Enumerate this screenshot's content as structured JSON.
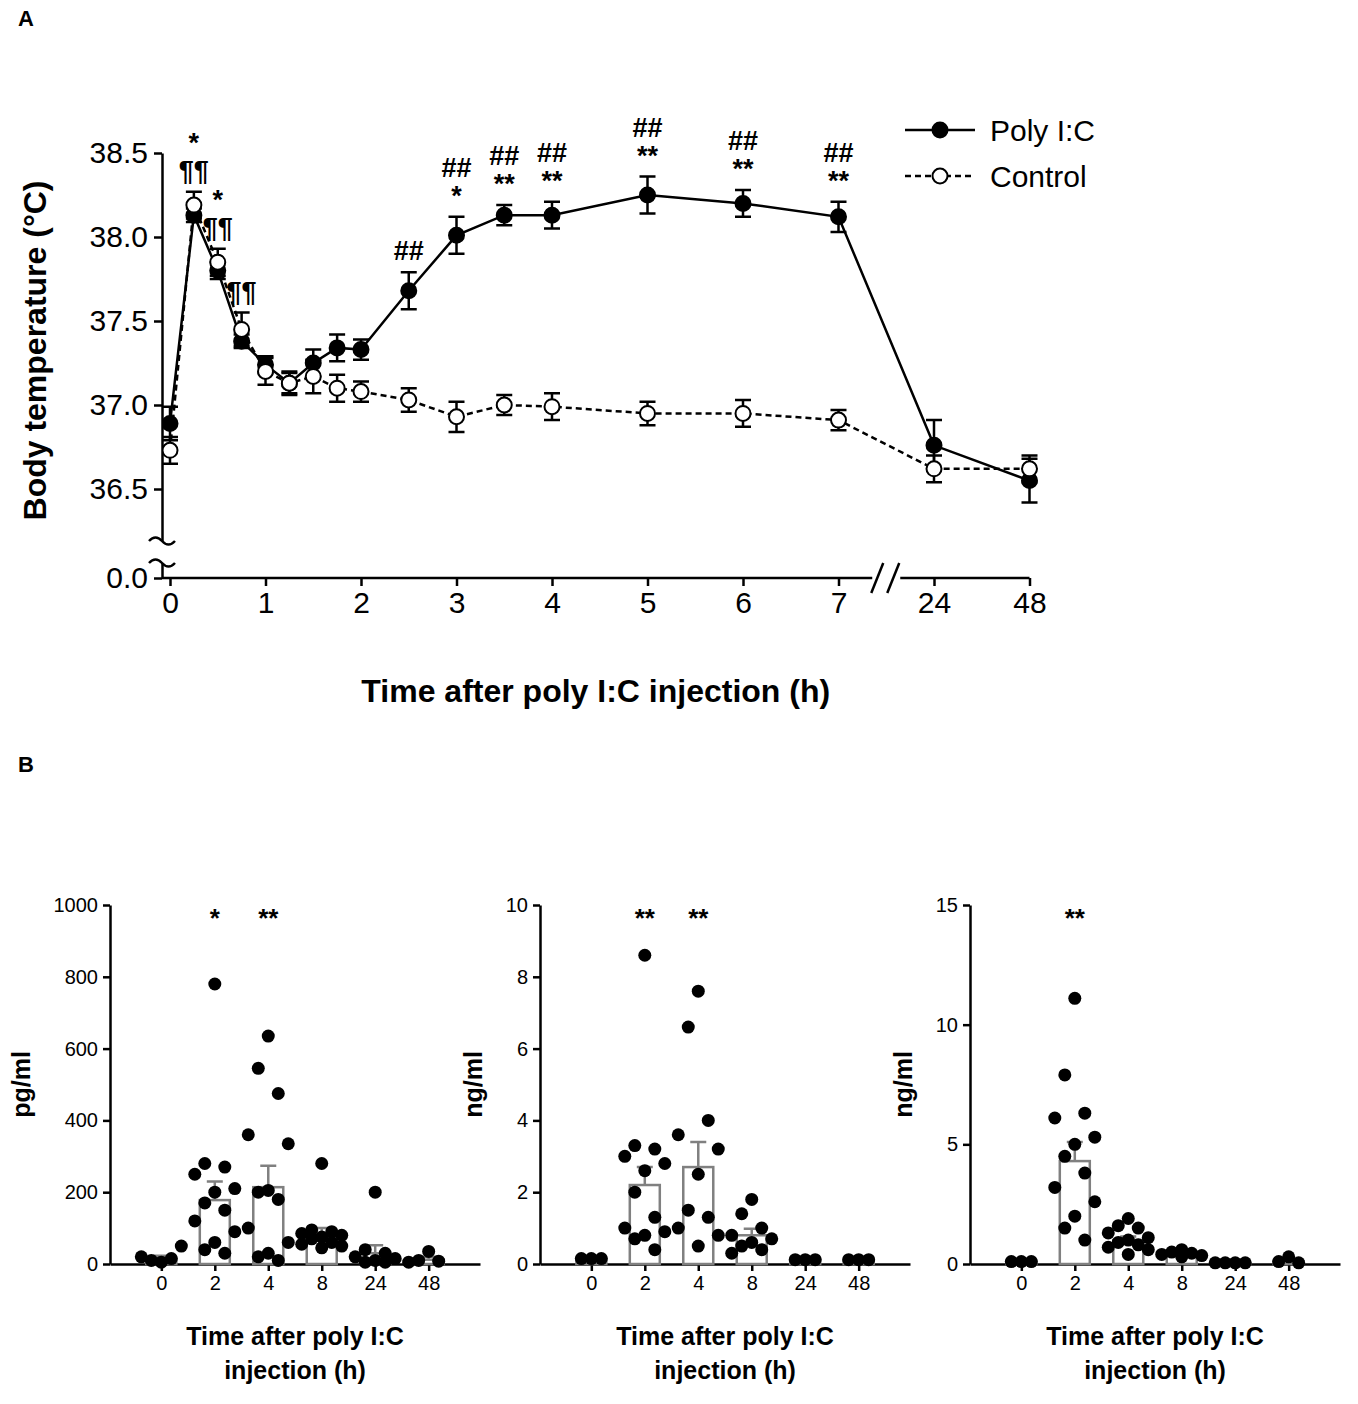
{
  "figure": {
    "panel_labels": [
      "A",
      "B"
    ]
  },
  "chart_data": [
    {
      "type": "line",
      "xlabel": "Time after poly I:C injection (h)",
      "ylabel": "Body temperature (°C)",
      "x": [
        0,
        0.25,
        0.5,
        0.75,
        1,
        1.25,
        1.5,
        1.75,
        2,
        2.5,
        3,
        3.5,
        4,
        5,
        6,
        7,
        24,
        48
      ],
      "xlim": [
        0,
        48
      ],
      "xticks": [
        0,
        1,
        2,
        3,
        4,
        5,
        6,
        7,
        24,
        48
      ],
      "ylim": [
        0,
        38.5
      ],
      "yticks": [
        {
          "value": 0,
          "label": "0.0"
        },
        36.5,
        {
          "value": 37,
          "label": "37.0"
        },
        37.5,
        {
          "value": 38,
          "label": "38.0"
        },
        38.5
      ],
      "legend": "upper right",
      "series": [
        {
          "name": "Poly I:C",
          "color": "#000000",
          "marker": "circle",
          "line_style": "solid",
          "values": [
            36.89,
            38.13,
            37.8,
            37.38,
            37.24,
            37.13,
            37.25,
            37.34,
            37.33,
            37.68,
            38.01,
            38.13,
            38.13,
            38.25,
            38.2,
            38.12,
            36.76,
            36.55
          ],
          "errors": [
            0.1,
            0.04,
            0.05,
            0.04,
            0.05,
            0.06,
            0.08,
            0.08,
            0.06,
            0.11,
            0.11,
            0.06,
            0.08,
            0.11,
            0.08,
            0.09,
            0.15,
            0.13
          ]
        },
        {
          "name": "Control",
          "color": "#000000",
          "marker": "open-circle",
          "line_style": "dashed",
          "values": [
            36.73,
            38.19,
            37.85,
            37.45,
            37.2,
            37.13,
            37.17,
            37.1,
            37.08,
            37.03,
            36.93,
            37.0,
            36.99,
            36.95,
            36.95,
            36.91,
            36.62,
            36.62
          ],
          "errors": [
            0.08,
            0.08,
            0.08,
            0.1,
            0.08,
            0.07,
            0.1,
            0.08,
            0.06,
            0.07,
            0.09,
            0.06,
            0.08,
            0.07,
            0.08,
            0.06,
            0.08,
            0.08
          ]
        }
      ],
      "annotations": [
        {
          "x": 0.25,
          "labels": [
            "*",
            "¶¶"
          ]
        },
        {
          "x": 0.5,
          "labels": [
            "*",
            "¶¶"
          ]
        },
        {
          "x": 0.75,
          "labels": [
            "¶¶"
          ]
        },
        {
          "x": 2.5,
          "labels": [
            "##"
          ]
        },
        {
          "x": 3,
          "labels": [
            "##",
            "*"
          ]
        },
        {
          "x": 3.5,
          "labels": [
            "##",
            "**"
          ]
        },
        {
          "x": 4,
          "labels": [
            "##",
            "**"
          ]
        },
        {
          "x": 5,
          "labels": [
            "##",
            "**"
          ]
        },
        {
          "x": 6,
          "labels": [
            "##",
            "**"
          ]
        },
        {
          "x": 7,
          "labels": [
            "##",
            "**"
          ]
        }
      ]
    },
    {
      "type": "bar",
      "xlabel": "Time after poly I:C injection (h)",
      "ylabel": "pg/ml",
      "categories": [
        "0",
        "2",
        "4",
        "8",
        "24",
        "48"
      ],
      "values": [
        15,
        178,
        214,
        80,
        30,
        12
      ],
      "errors": [
        8,
        52,
        60,
        20,
        22,
        8
      ],
      "points": [
        [
          5,
          10,
          15,
          20,
          50
        ],
        [
          780,
          280,
          270,
          250,
          210,
          200,
          170,
          150,
          120,
          90,
          60,
          40,
          30
        ],
        [
          635,
          545,
          475,
          360,
          335,
          205,
          200,
          180,
          100,
          60,
          30,
          20,
          10
        ],
        [
          280,
          95,
          90,
          85,
          80,
          75,
          70,
          60,
          55,
          50,
          45
        ],
        [
          200,
          40,
          30,
          20,
          15,
          10,
          5,
          5
        ],
        [
          35,
          10,
          8,
          5
        ]
      ],
      "annotations": [
        null,
        "*",
        "**",
        null,
        null,
        null
      ],
      "ylim": [
        0,
        1000
      ],
      "yticks": [
        0,
        200,
        400,
        600,
        800,
        1000
      ],
      "color": "#808080"
    },
    {
      "type": "bar",
      "xlabel": "Time after poly I:C injection (h)",
      "ylabel": "ng/ml",
      "categories": [
        "0",
        "2",
        "4",
        "8",
        "24",
        "48"
      ],
      "values": [
        0.15,
        2.2,
        2.7,
        0.8,
        0.12,
        0.12
      ],
      "errors": [
        0.02,
        0.5,
        0.7,
        0.18,
        0.01,
        0.01
      ],
      "points": [
        [
          0.15,
          0.15,
          0.15
        ],
        [
          8.6,
          3.3,
          3.2,
          3.0,
          2.8,
          2.6,
          2.0,
          1.3,
          1.0,
          0.9,
          0.8,
          0.7,
          0.4
        ],
        [
          7.6,
          6.6,
          4.0,
          3.6,
          3.2,
          2.5,
          1.5,
          1.3,
          1.0,
          0.8,
          0.5
        ],
        [
          1.8,
          1.4,
          1.0,
          0.8,
          0.7,
          0.6,
          0.5,
          0.4,
          0.3
        ],
        [
          0.12,
          0.12,
          0.12
        ],
        [
          0.12,
          0.12,
          0.12
        ]
      ],
      "annotations": [
        null,
        "**",
        "**",
        null,
        null,
        null
      ],
      "ylim": [
        0,
        10
      ],
      "yticks": [
        0,
        2,
        4,
        6,
        8,
        10
      ],
      "color": "#808080"
    },
    {
      "type": "bar",
      "xlabel": "Time after poly I:C injection (h)",
      "ylabel": "ng/ml",
      "categories": [
        "0",
        "2",
        "4",
        "8",
        "24",
        "48"
      ],
      "values": [
        0.12,
        4.3,
        1.0,
        0.4,
        0.05,
        0.12
      ],
      "errors": [
        0.02,
        0.8,
        0.15,
        0.05,
        0.01,
        0.06
      ],
      "points": [
        [
          0.1,
          0.1,
          0.1
        ],
        [
          11.1,
          7.9,
          6.3,
          6.1,
          5.3,
          5.0,
          4.5,
          3.8,
          3.2,
          2.6,
          2.0,
          1.5,
          1.0
        ],
        [
          1.9,
          1.6,
          1.5,
          1.3,
          1.1,
          1.0,
          0.9,
          0.8,
          0.7,
          0.6,
          0.4
        ],
        [
          0.6,
          0.5,
          0.45,
          0.4,
          0.35,
          0.3
        ],
        [
          0.05,
          0.05,
          0.05,
          0.05
        ],
        [
          0.3,
          0.1,
          0.05
        ]
      ],
      "annotations": [
        null,
        "**",
        null,
        null,
        null,
        null
      ],
      "ylim": [
        0,
        15
      ],
      "yticks": [
        0,
        5,
        10,
        15
      ],
      "color": "#808080"
    }
  ]
}
